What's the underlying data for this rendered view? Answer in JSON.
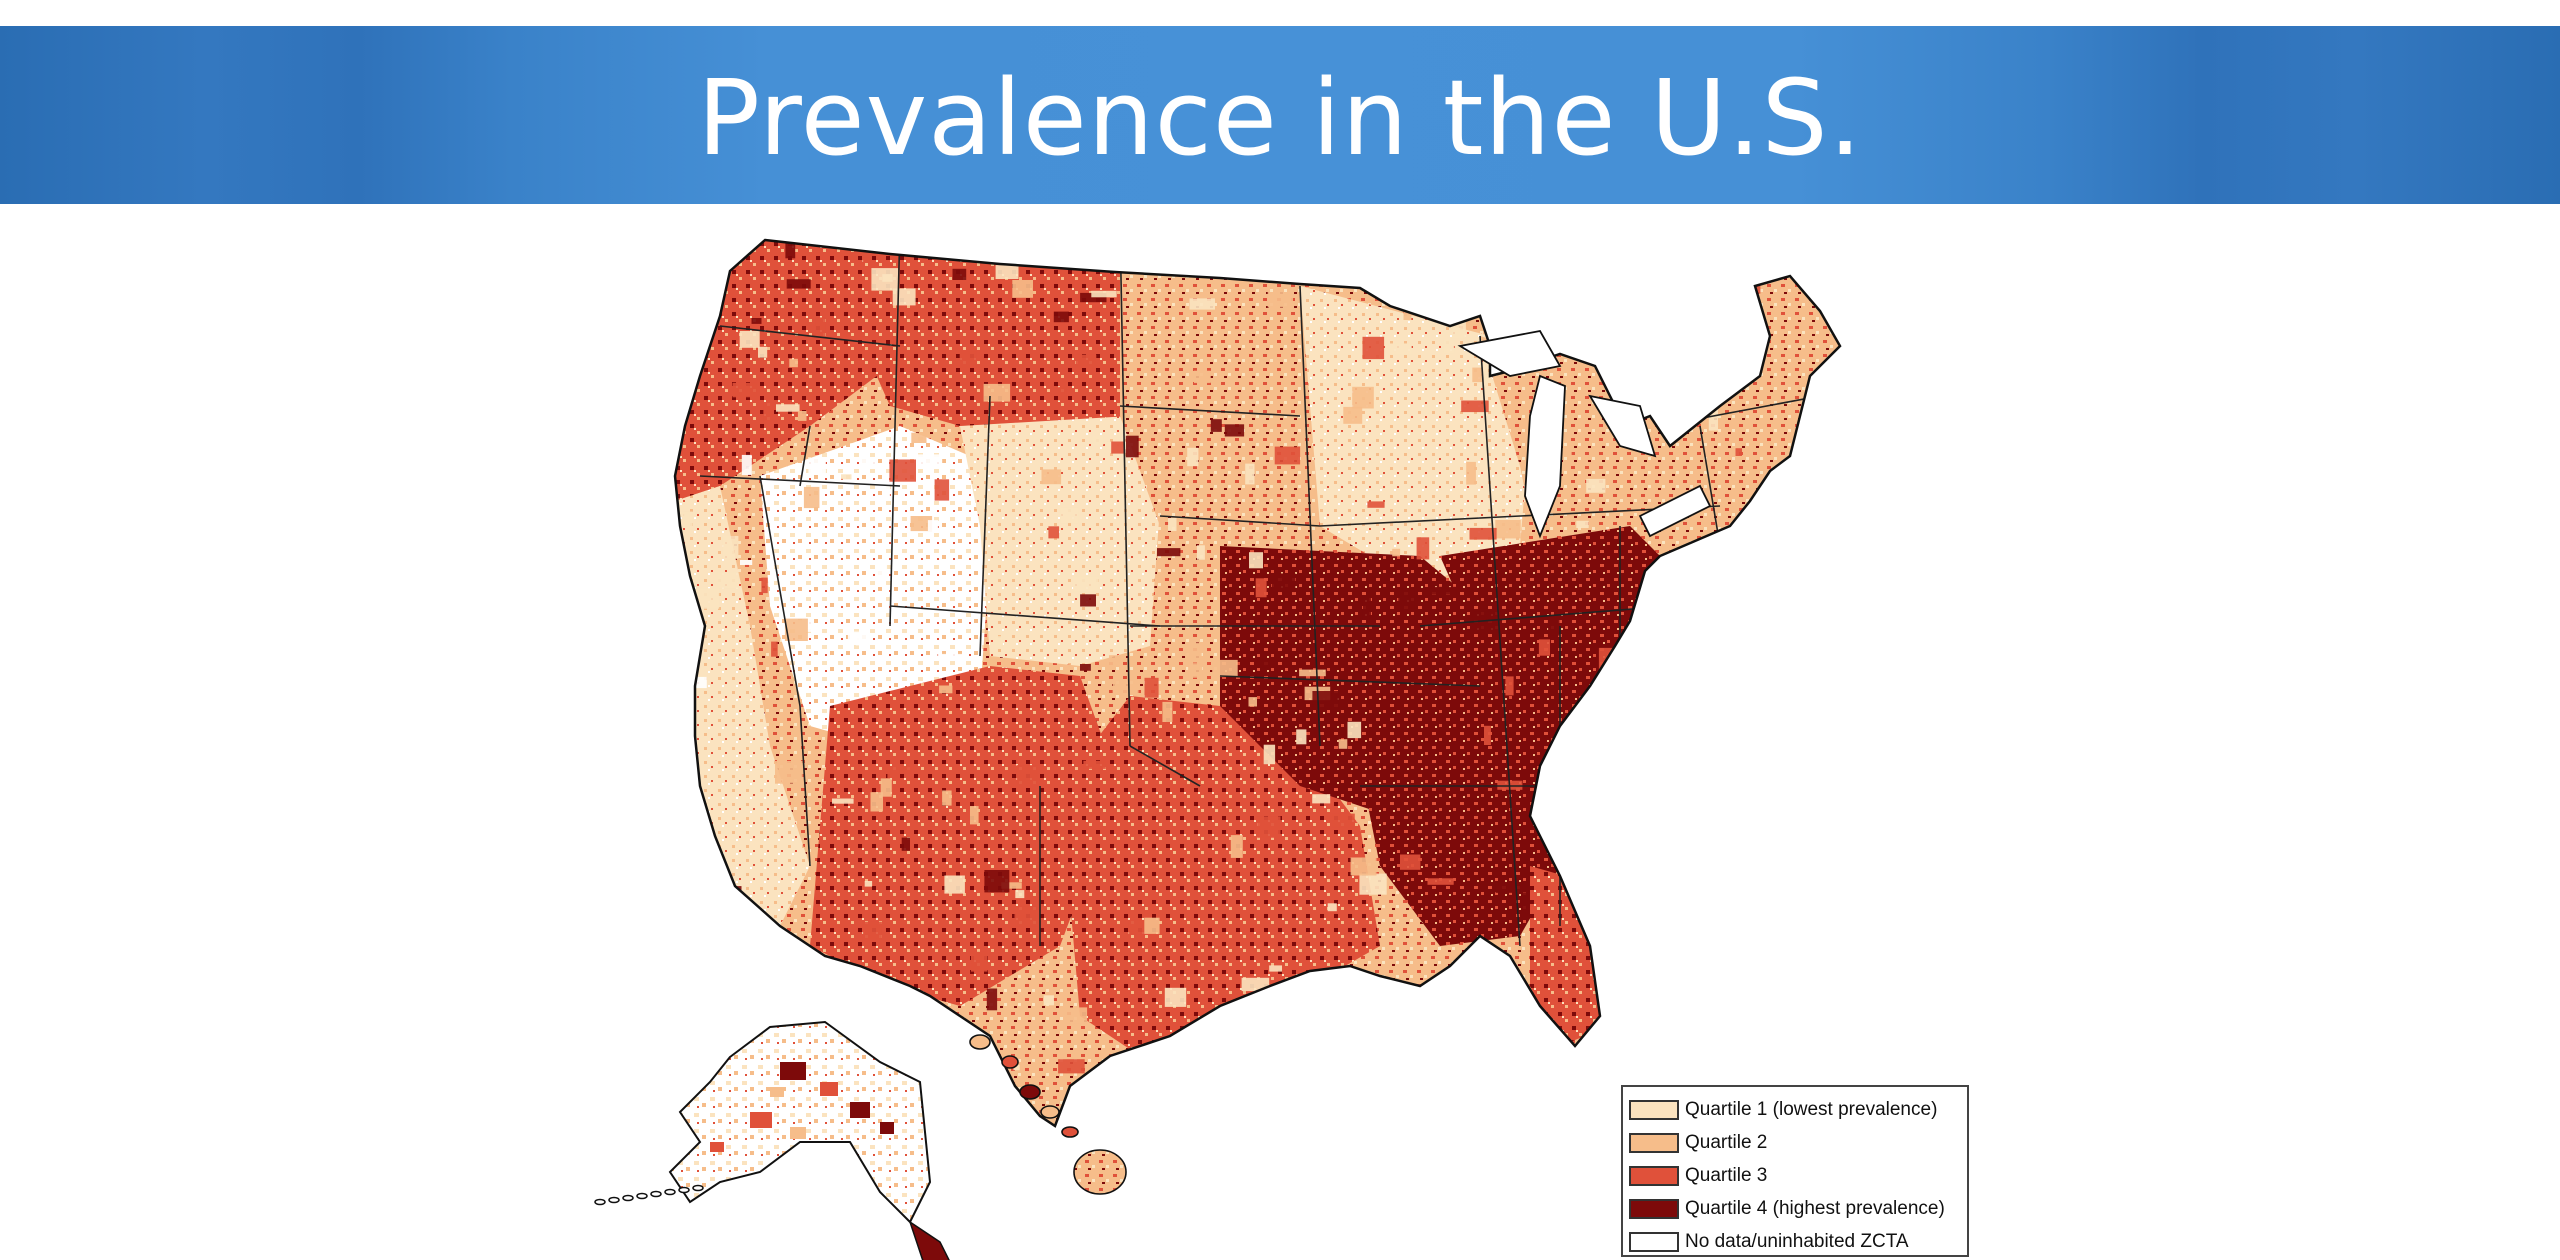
{
  "slide": {
    "title": "Prevalence in the U.S."
  },
  "map": {
    "colors": {
      "quartile_1": "#fbe3bf",
      "quartile_2": "#f6bd8a",
      "quartile_3": "#e0513a",
      "quartile_4": "#7d0a0a",
      "no_data": "#ffffff"
    },
    "regional_pattern": {
      "highest_prevalence_concentration": "southeast and south-central",
      "lowest_prevalence_concentration": "mountain west"
    },
    "legend": {
      "items": [
        {
          "label": "Quartile 1 (lowest prevalence)",
          "color": "#fbe3bf"
        },
        {
          "label": "Quartile 2",
          "color": "#f6bd8a"
        },
        {
          "label": "Quartile 3",
          "color": "#e0513a"
        },
        {
          "label": "Quartile 4 (highest prevalence)",
          "color": "#7d0a0a"
        },
        {
          "label": "No data/uninhabited ZCTA",
          "color": "#ffffff"
        }
      ]
    }
  }
}
